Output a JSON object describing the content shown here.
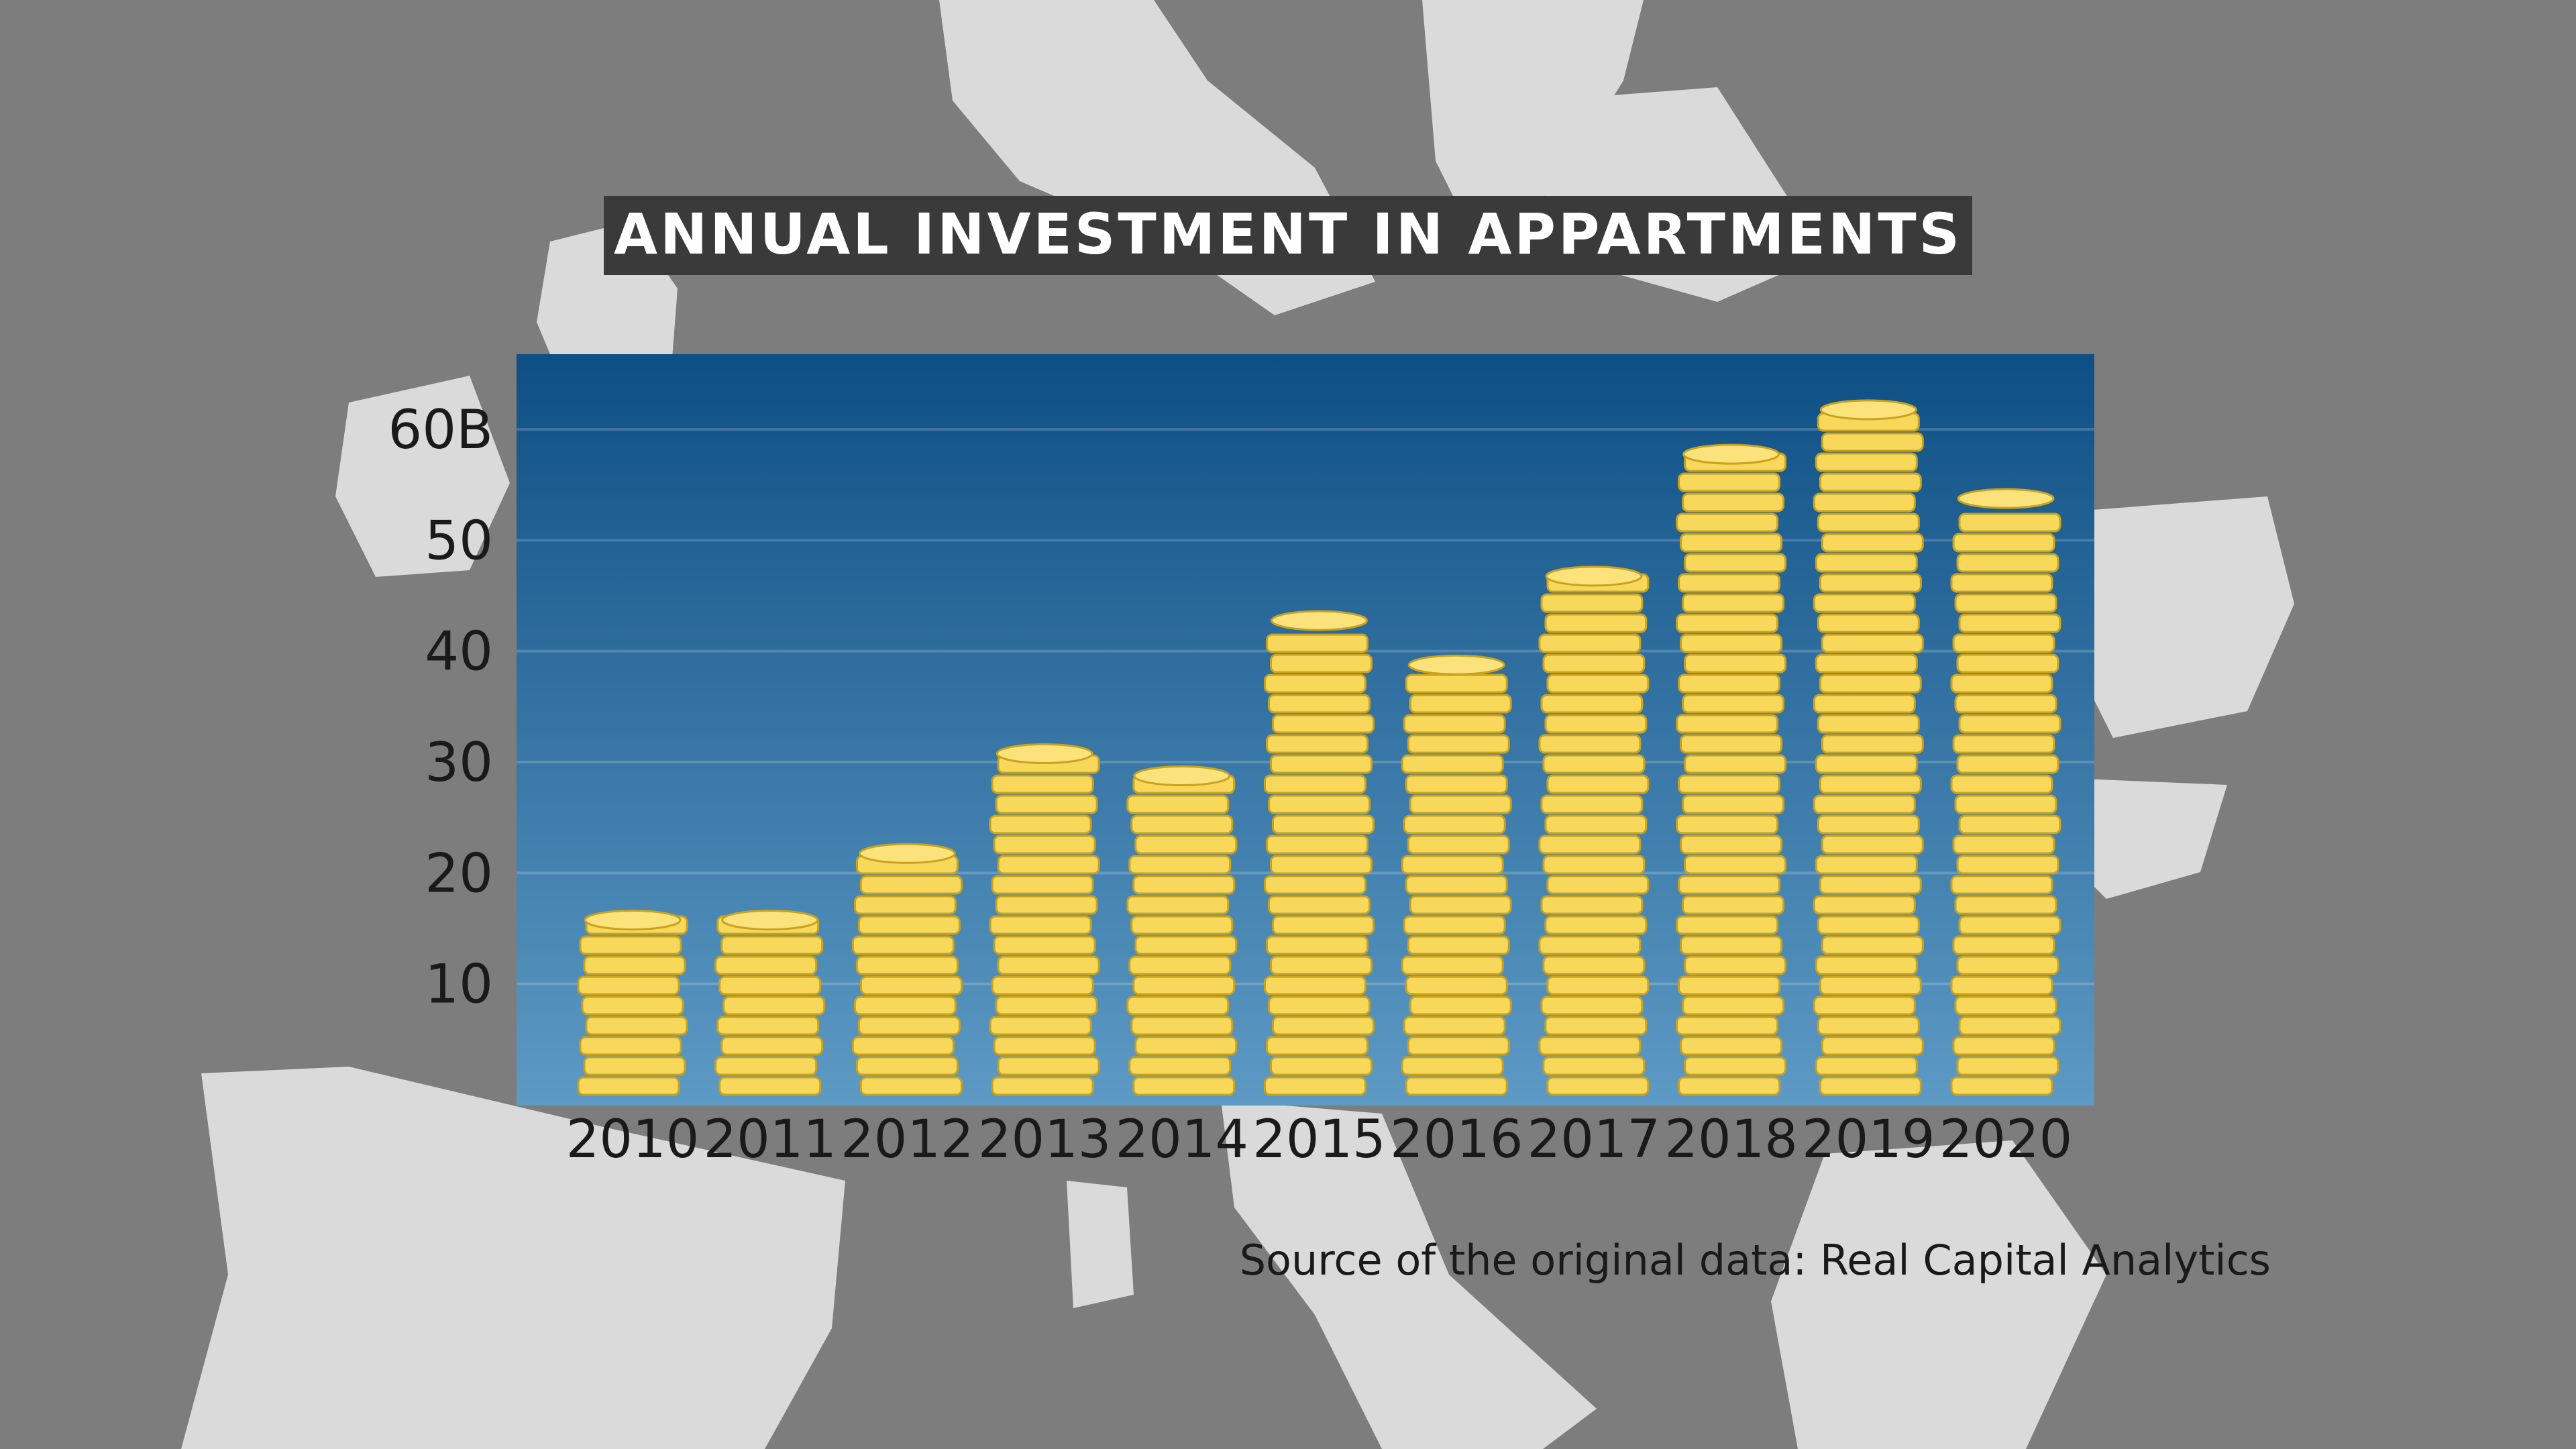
{
  "colors": {
    "background": "#7d7d7d",
    "map_land": "#e2e2e2",
    "panel_top": "#0e4f84",
    "panel_bottom": "#5d9ac4",
    "coin_fill": "#f7d85a",
    "coin_edge": "#c9a21f",
    "coin_top": "#fbe27a",
    "title_bg": "#3a3a3a",
    "title_text": "#ffffff",
    "label_text": "#1a1a1a"
  },
  "chart_data": {
    "type": "bar",
    "title": "ANNUAL INVESTMENT IN APPARTMENTS",
    "categories": [
      "2010",
      "2011",
      "2012",
      "2013",
      "2014",
      "2015",
      "2016",
      "2017",
      "2018",
      "2019",
      "2020"
    ],
    "values": [
      16,
      16,
      22,
      31,
      29,
      43,
      39,
      47,
      58,
      62,
      54
    ],
    "y_ticks": [
      "10",
      "20",
      "30",
      "40",
      "50",
      "60B"
    ],
    "ylim": [
      0,
      68
    ],
    "grid": true,
    "source": "Source of the original data: Real Capital Analytics"
  }
}
